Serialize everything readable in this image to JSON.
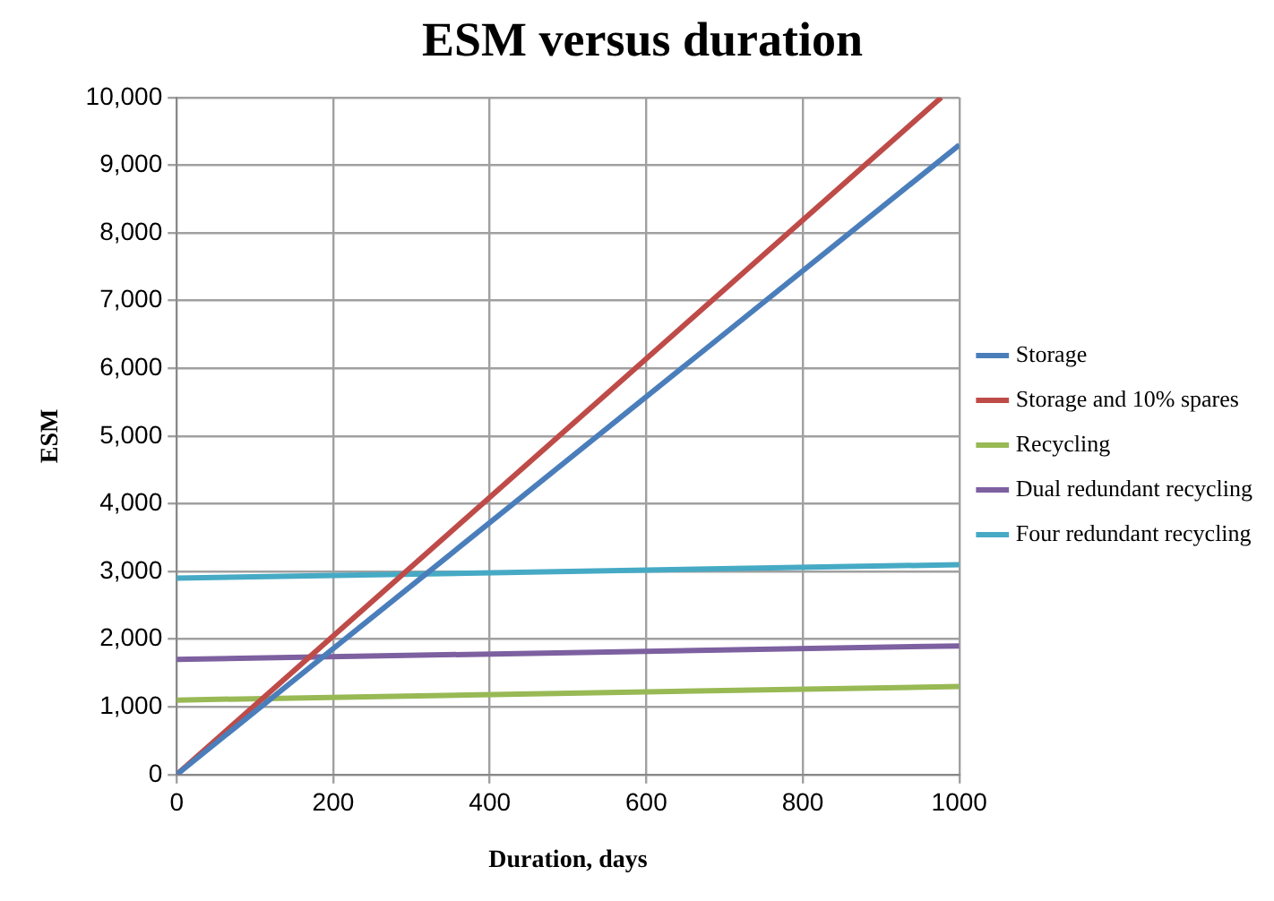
{
  "chart_data": {
    "type": "line",
    "title": "ESM versus duration",
    "xlabel": "Duration, days",
    "ylabel": "ESM",
    "x": [
      0,
      1000
    ],
    "series": [
      {
        "name": "Storage",
        "color": "#4a7ebb",
        "values": [
          0,
          9300
        ]
      },
      {
        "name": "Storage and 10% spares",
        "color": "#be4b48",
        "x": [
          0,
          977
        ],
        "values": [
          0,
          10000
        ]
      },
      {
        "name": "Recycling",
        "color": "#98b954",
        "values": [
          1100,
          1300
        ]
      },
      {
        "name": "Dual redundant recycling",
        "color": "#7d60a0",
        "values": [
          1700,
          1900
        ]
      },
      {
        "name": "Four redundant recycling",
        "color": "#46aac5",
        "values": [
          2900,
          3100
        ]
      }
    ],
    "xlim": [
      0,
      1000
    ],
    "xticks": [
      0,
      200,
      400,
      600,
      800,
      1000
    ],
    "ylim": [
      0,
      10000
    ],
    "yticks": [
      {
        "value": 0,
        "label": "0"
      },
      {
        "value": 1000,
        "label": "1,000"
      },
      {
        "value": 2000,
        "label": "2,000"
      },
      {
        "value": 3000,
        "label": "3,000"
      },
      {
        "value": 4000,
        "label": "4,000"
      },
      {
        "value": 5000,
        "label": "5,000"
      },
      {
        "value": 6000,
        "label": "6,000"
      },
      {
        "value": 7000,
        "label": "7,000"
      },
      {
        "value": 8000,
        "label": "8,000"
      },
      {
        "value": 9000,
        "label": "9,000"
      },
      {
        "value": 10000,
        "label": "10,000"
      }
    ],
    "grid": true,
    "legend": "right",
    "marker": "none",
    "line_style": "solid"
  }
}
